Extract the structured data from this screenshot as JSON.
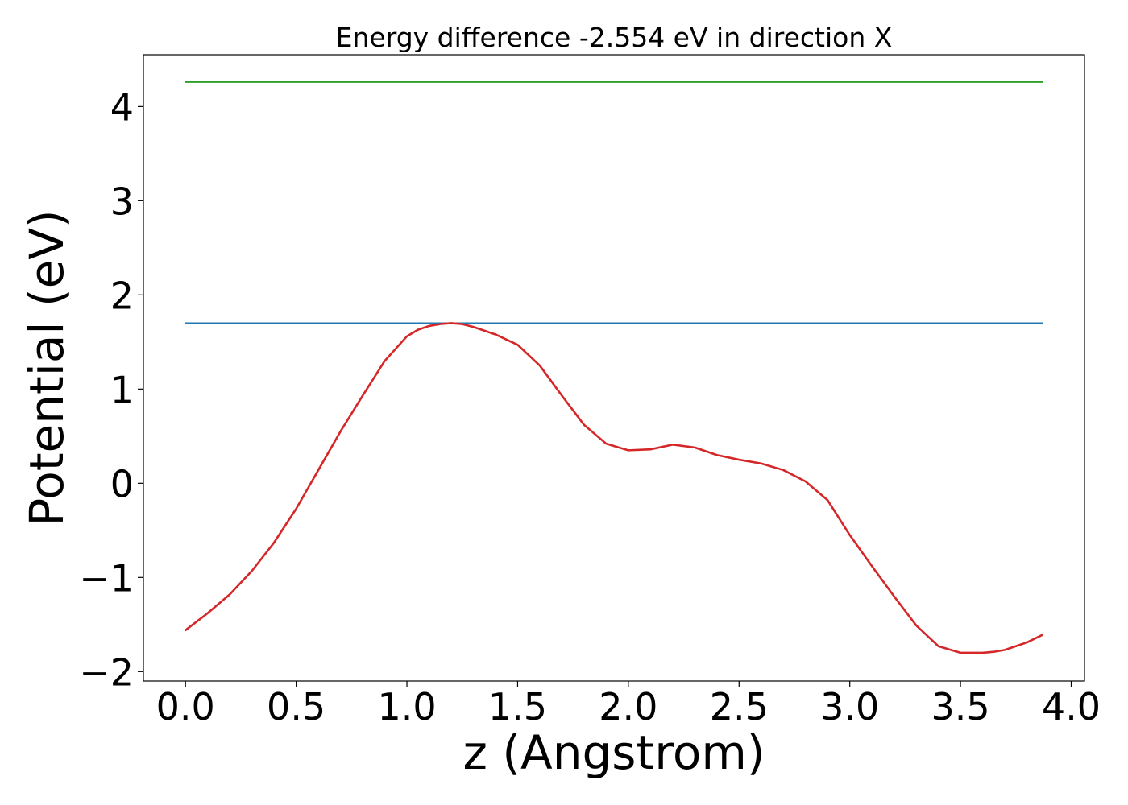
{
  "chart_data": {
    "type": "line",
    "title": "Energy difference -2.554 eV in direction X",
    "xlabel": "z (Angstrom)",
    "ylabel": "Potential (eV)",
    "xlim": [
      -0.19,
      4.06
    ],
    "ylim": [
      -2.1,
      4.55
    ],
    "xticks": [
      0.0,
      0.5,
      1.0,
      1.5,
      2.0,
      2.5,
      3.0,
      3.5,
      4.0
    ],
    "xtick_labels": [
      "0.0",
      "0.5",
      "1.0",
      "1.5",
      "2.0",
      "2.5",
      "3.0",
      "3.5",
      "4.0"
    ],
    "yticks": [
      -2,
      -1,
      0,
      1,
      2,
      3,
      4
    ],
    "ytick_labels": [
      "−2",
      "−1",
      "0",
      "1",
      "2",
      "3",
      "4"
    ],
    "grid": false,
    "colors": {
      "potential": "#d62728",
      "upper_level": "#2ca02c",
      "barrier_level": "#1f77b4"
    },
    "series": [
      {
        "key": "potential",
        "x": [
          0.0,
          0.1,
          0.2,
          0.3,
          0.4,
          0.5,
          0.6,
          0.7,
          0.8,
          0.9,
          1.0,
          1.05,
          1.1,
          1.15,
          1.2,
          1.25,
          1.3,
          1.4,
          1.5,
          1.6,
          1.7,
          1.8,
          1.9,
          2.0,
          2.1,
          2.2,
          2.3,
          2.4,
          2.5,
          2.6,
          2.7,
          2.8,
          2.9,
          3.0,
          3.1,
          3.2,
          3.3,
          3.4,
          3.5,
          3.6,
          3.65,
          3.7,
          3.8,
          3.87
        ],
        "y": [
          -1.56,
          -1.38,
          -1.18,
          -0.93,
          -0.63,
          -0.27,
          0.14,
          0.55,
          0.93,
          1.3,
          1.56,
          1.63,
          1.67,
          1.69,
          1.7,
          1.69,
          1.66,
          1.58,
          1.47,
          1.25,
          0.93,
          0.62,
          0.42,
          0.35,
          0.36,
          0.41,
          0.38,
          0.3,
          0.25,
          0.21,
          0.14,
          0.02,
          -0.18,
          -0.55,
          -0.88,
          -1.2,
          -1.51,
          -1.73,
          -1.8,
          -1.8,
          -1.79,
          -1.77,
          -1.69,
          -1.61
        ]
      },
      {
        "key": "upper_level",
        "x": [
          0.0,
          3.87
        ],
        "y": [
          4.26,
          4.26
        ]
      },
      {
        "key": "barrier_level",
        "x": [
          0.0,
          3.87
        ],
        "y": [
          1.7,
          1.7
        ]
      }
    ]
  }
}
